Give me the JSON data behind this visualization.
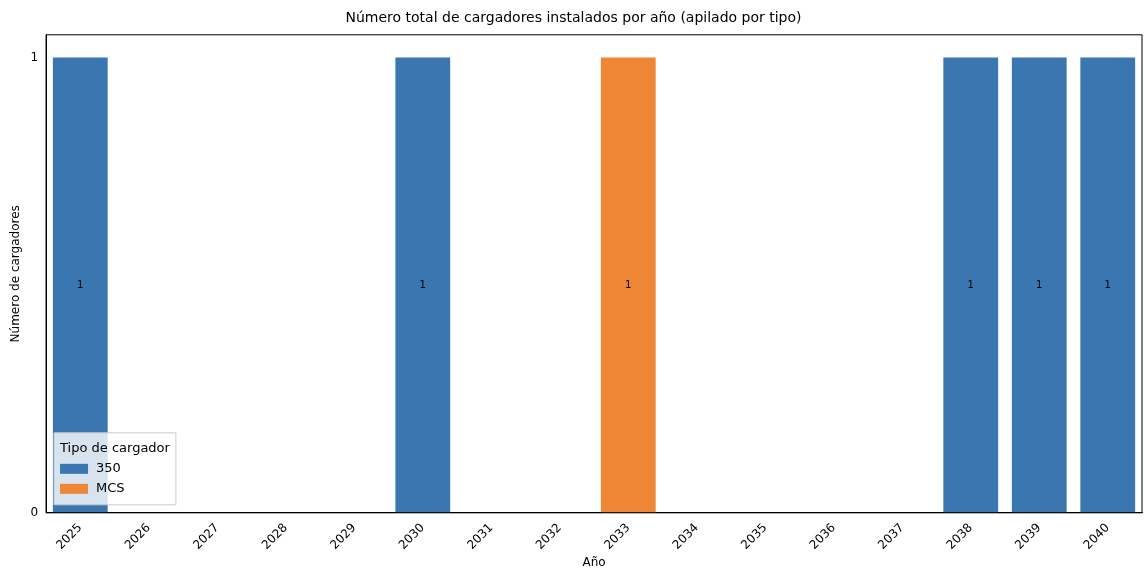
{
  "chart_data": {
    "type": "bar",
    "title": "Número total de cargadores instalados por año (apilado por tipo)",
    "xlabel": "Año",
    "ylabel": "Número de cargadores",
    "legend_title": "Tipo de cargador",
    "legend": "bottom left",
    "stacked": true,
    "grid": false,
    "categories": [
      "2025",
      "2026",
      "2027",
      "2028",
      "2029",
      "2030",
      "2031",
      "2032",
      "2033",
      "2034",
      "2035",
      "2036",
      "2037",
      "2038",
      "2039",
      "2040"
    ],
    "series": [
      {
        "name": "350",
        "color": "#3a76af",
        "values": [
          1,
          0,
          0,
          0,
          0,
          1,
          0,
          0,
          0,
          0,
          0,
          0,
          0,
          1,
          1,
          1
        ],
        "value_labels": [
          "1",
          null,
          null,
          null,
          null,
          "1",
          null,
          null,
          null,
          null,
          null,
          null,
          null,
          "1",
          "1",
          "1"
        ]
      },
      {
        "name": "MCS",
        "color": "#ef8636",
        "values": [
          0,
          0,
          0,
          0,
          0,
          0,
          0,
          0,
          1,
          0,
          0,
          0,
          0,
          0,
          0,
          0
        ],
        "value_labels": [
          null,
          null,
          null,
          null,
          null,
          null,
          null,
          null,
          "1",
          null,
          null,
          null,
          null,
          null,
          null,
          null
        ]
      }
    ],
    "ylim": [
      0,
      1.05
    ],
    "yticks": [
      0,
      1
    ]
  }
}
